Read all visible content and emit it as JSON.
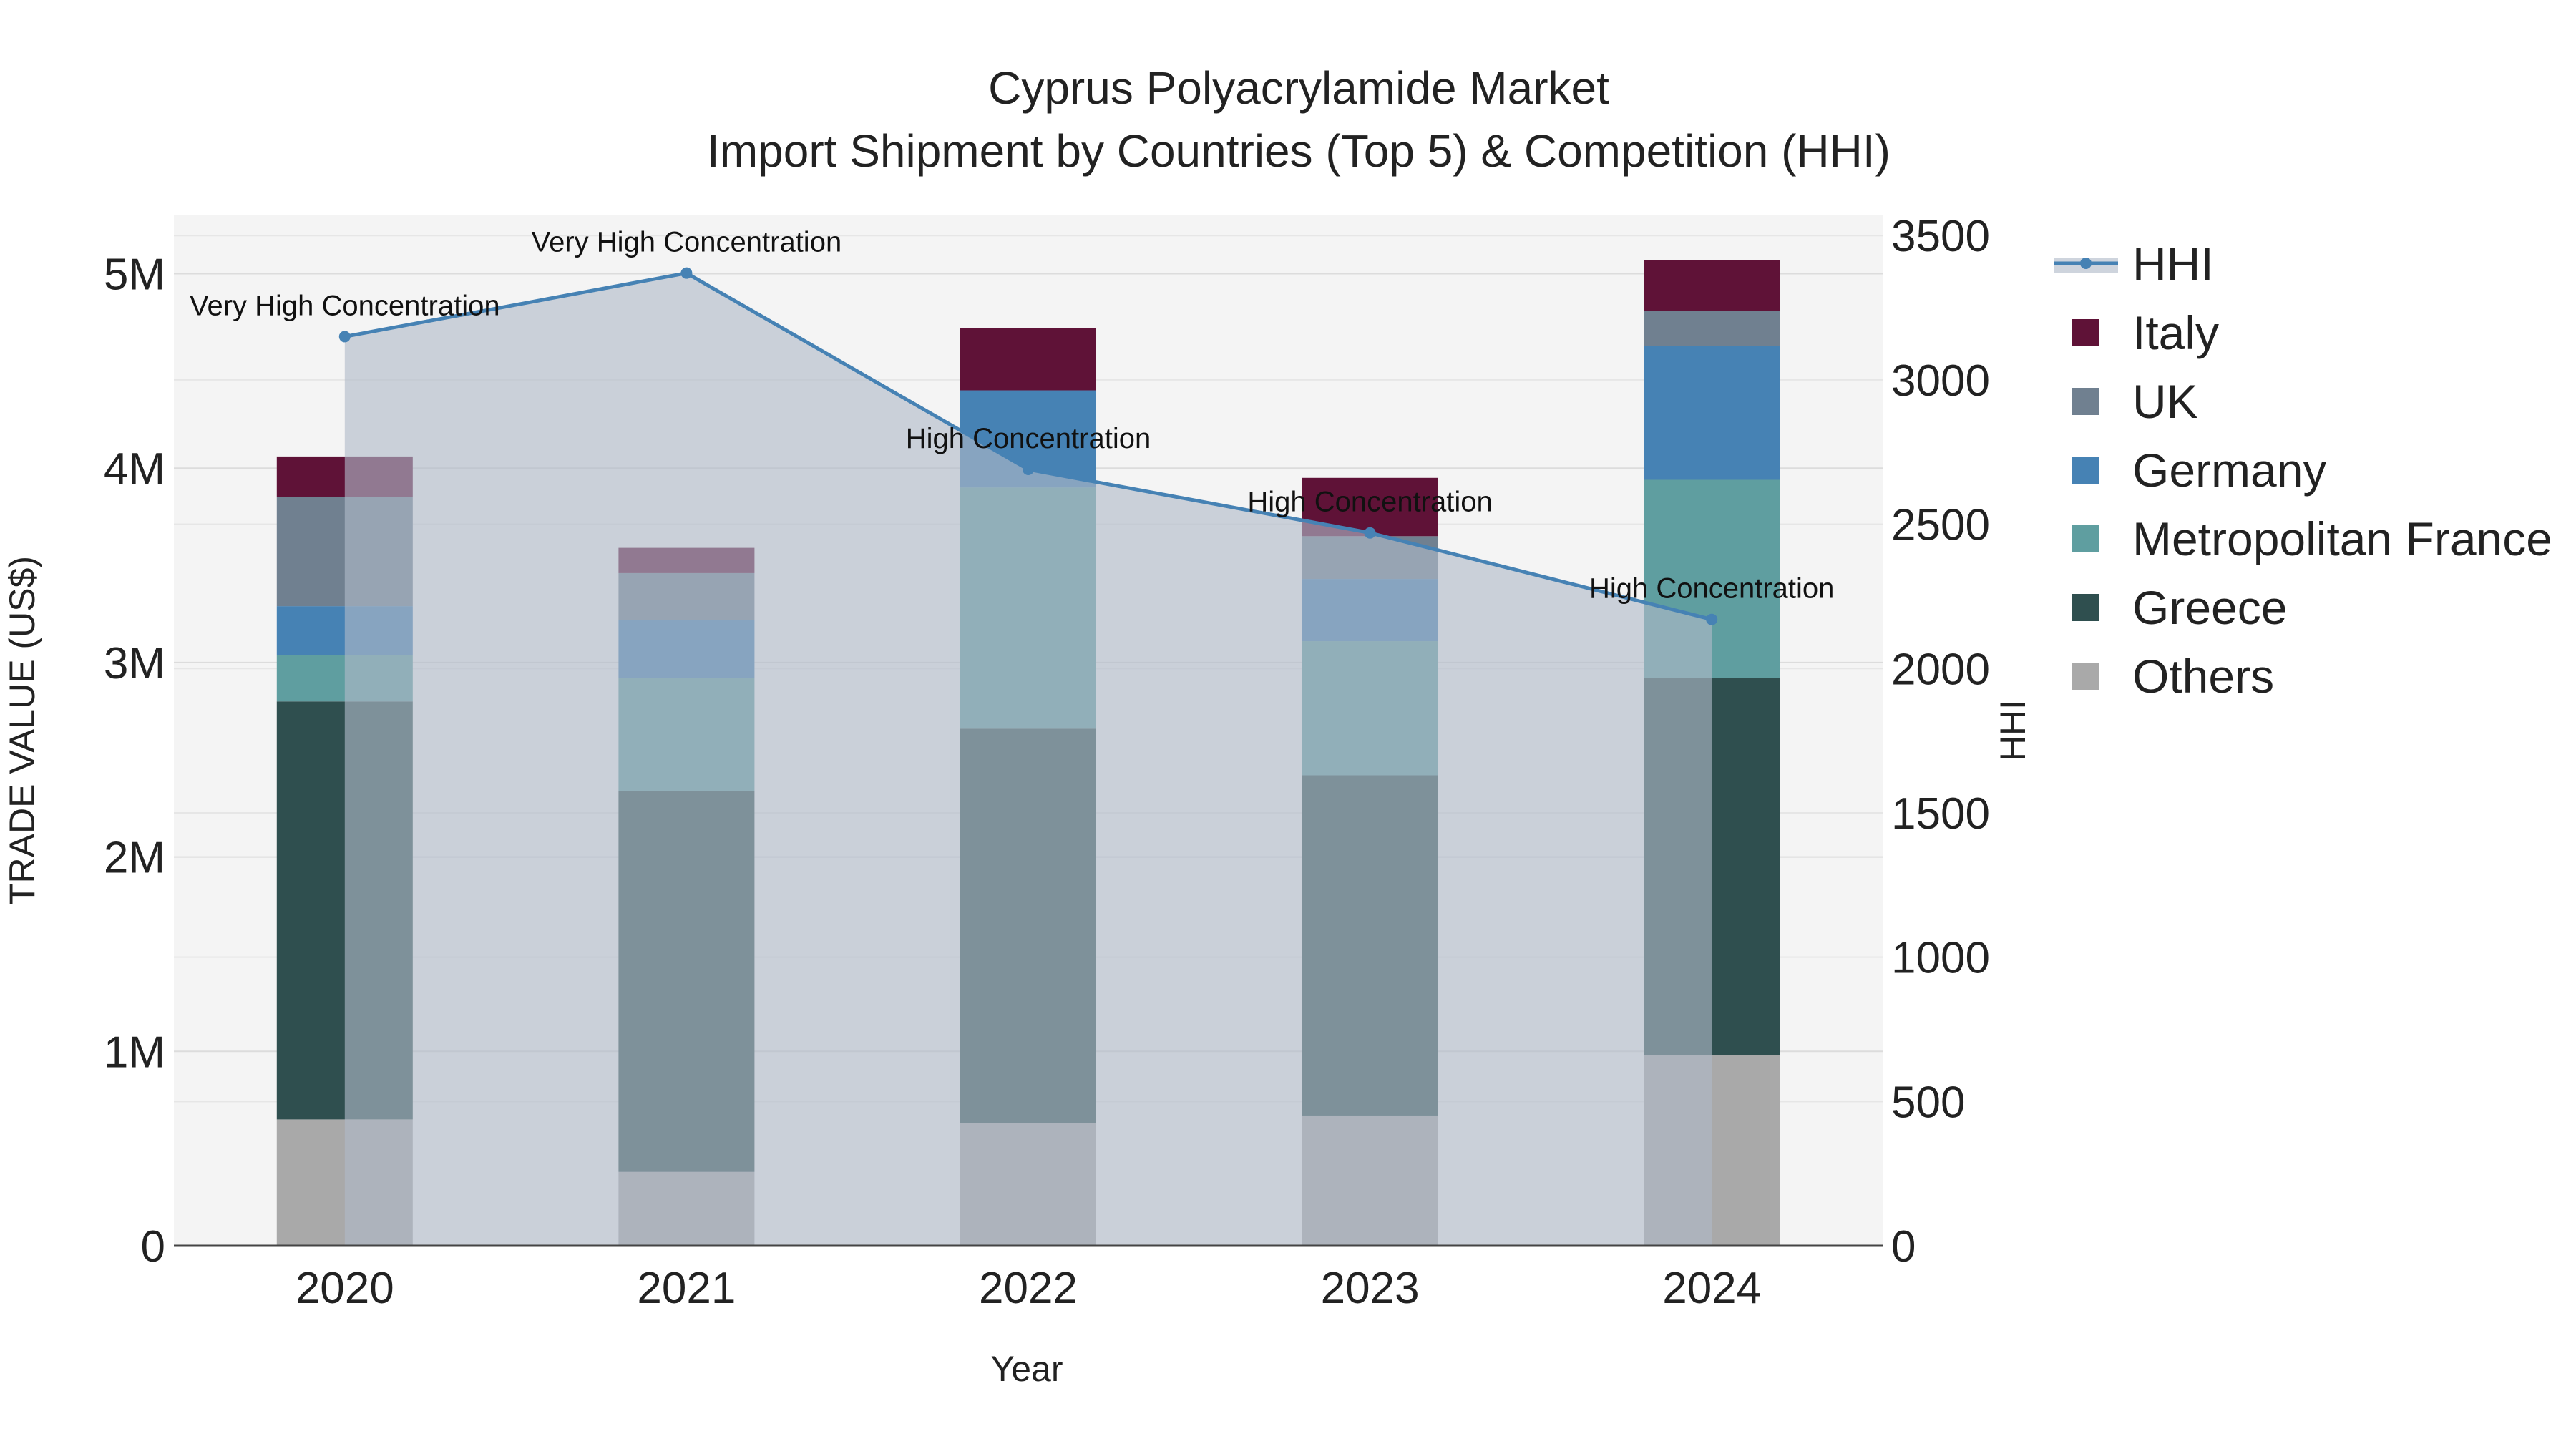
{
  "chart_data": {
    "type": "bar",
    "title": "Cyprus Polyacrylamide Market",
    "subtitle": "Import Shipment by Countries (Top 5) & Competition (HHI)",
    "xlabel": "Year",
    "ylabel": "TRADE VALUE (US$)",
    "y2label": "HHI",
    "categories": [
      "2020",
      "2021",
      "2022",
      "2023",
      "2024"
    ],
    "ylim": [
      0,
      5300000
    ],
    "y2lim": [
      0,
      3570
    ],
    "y_ticks": [
      {
        "value": 0,
        "label": "0"
      },
      {
        "value": 1000000,
        "label": "1M"
      },
      {
        "value": 2000000,
        "label": "2M"
      },
      {
        "value": 3000000,
        "label": "3M"
      },
      {
        "value": 4000000,
        "label": "4M"
      },
      {
        "value": 5000000,
        "label": "5M"
      }
    ],
    "y2_ticks": [
      {
        "value": 0,
        "label": "0"
      },
      {
        "value": 500,
        "label": "500"
      },
      {
        "value": 1000,
        "label": "1000"
      },
      {
        "value": 1500,
        "label": "1500"
      },
      {
        "value": 2000,
        "label": "2000"
      },
      {
        "value": 2500,
        "label": "2500"
      },
      {
        "value": 3000,
        "label": "3000"
      },
      {
        "value": 3500,
        "label": "3500"
      }
    ],
    "series": [
      {
        "name": "Others",
        "color": "#a9a9a9",
        "values": [
          650000,
          380000,
          630000,
          670000,
          980000
        ]
      },
      {
        "name": "Greece",
        "color": "#2f4f4f",
        "values": [
          2150000,
          1960000,
          2030000,
          1750000,
          1940000
        ]
      },
      {
        "name": "Metropolitan France",
        "color": "#5f9ea0",
        "values": [
          240000,
          580000,
          1240000,
          690000,
          1020000
        ]
      },
      {
        "name": "Germany",
        "color": "#4682b4",
        "values": [
          250000,
          300000,
          500000,
          320000,
          690000
        ]
      },
      {
        "name": "UK",
        "color": "#708090",
        "values": [
          560000,
          240000,
          0,
          220000,
          180000
        ]
      },
      {
        "name": "Italy",
        "color": "#5f1237",
        "values": [
          210000,
          130000,
          320000,
          300000,
          260000
        ]
      }
    ],
    "hhi": {
      "name": "HHI",
      "color": "#4682b4",
      "values": [
        3150,
        3370,
        2690,
        2470,
        2170
      ],
      "labels": [
        "Very High Concentration",
        "Very High Concentration",
        "High Concentration",
        "High Concentration",
        "High Concentration"
      ]
    },
    "legend_order": [
      "HHI",
      "Italy",
      "UK",
      "Germany",
      "Metropolitan France",
      "Greece",
      "Others"
    ],
    "legend_position": "right"
  }
}
